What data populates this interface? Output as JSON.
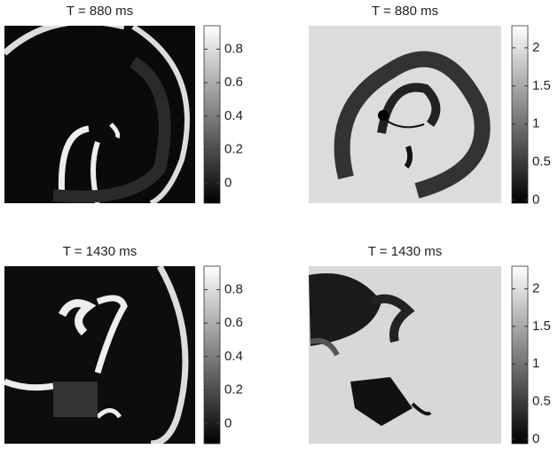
{
  "chart_data": [
    {
      "type": "image",
      "title": "T = 880 ms",
      "clim": [
        -0.12,
        0.94
      ],
      "cticks": [
        0,
        0.2,
        0.4,
        0.6,
        0.8
      ]
    },
    {
      "type": "image",
      "title": "T = 880 ms",
      "clim": [
        -0.04,
        2.29
      ],
      "cticks": [
        0,
        0.5,
        1,
        1.5,
        2
      ]
    },
    {
      "type": "image",
      "title": "T = 1430 ms",
      "clim": [
        -0.12,
        0.94
      ],
      "cticks": [
        0,
        0.2,
        0.4,
        0.6,
        0.8
      ]
    },
    {
      "type": "image",
      "title": "T = 1430 ms",
      "clim": [
        -0.06,
        2.3
      ],
      "cticks": [
        0,
        0.5,
        1,
        1.5,
        2
      ]
    }
  ]
}
